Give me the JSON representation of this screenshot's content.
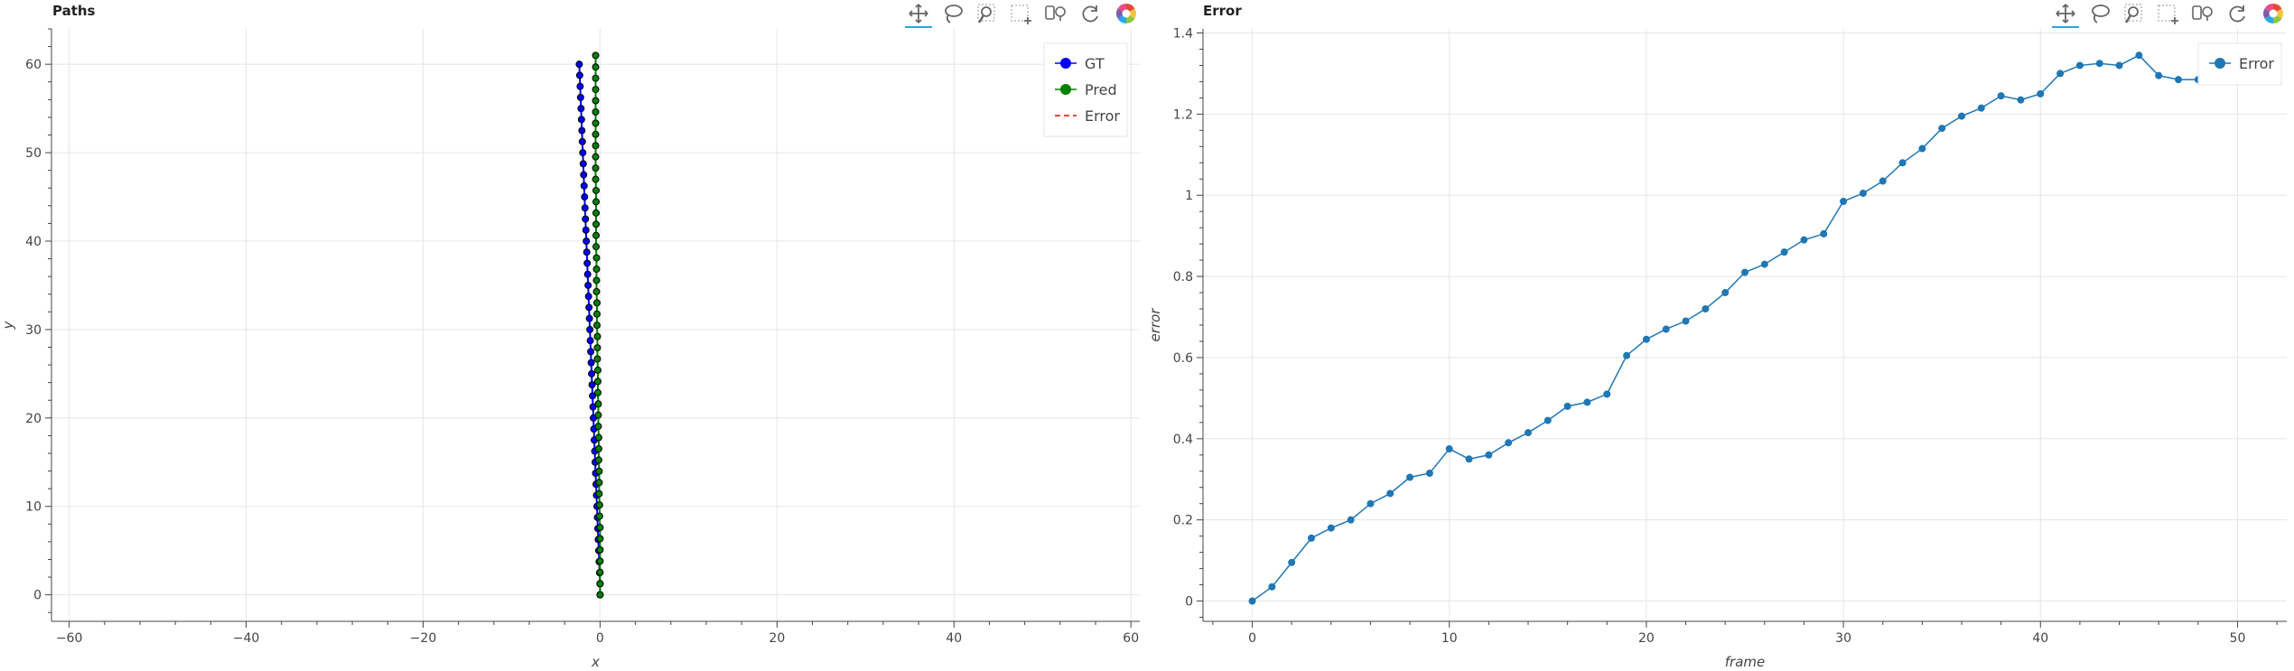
{
  "toolbar": {
    "tools": [
      "pan-icon",
      "lasso-select-icon",
      "wheel-zoom-icon",
      "box-zoom-icon",
      "hover-icon",
      "reset-icon",
      "bokeh-logo-icon"
    ],
    "active_tool": "pan-icon"
  },
  "colors": {
    "gt": "#0000ff",
    "pred": "#008000",
    "error_dash": "#ff0000",
    "error_line": "#1f77b4",
    "grid": "#e5e5e5",
    "axis": "#444444",
    "toolbar_accent": "#26aae1"
  },
  "chart_data": [
    {
      "type": "line",
      "title": "Paths",
      "xlabel": "x",
      "ylabel": "y",
      "xlim": [
        -62,
        61
      ],
      "ylim": [
        -3,
        64
      ],
      "xticks": [
        -60,
        -40,
        -20,
        0,
        20,
        40,
        60
      ],
      "yticks": [
        0,
        10,
        20,
        30,
        40,
        50,
        60
      ],
      "xtick_labels": [
        "−60",
        "−40",
        "−20",
        "0",
        "20",
        "40",
        "60"
      ],
      "ytick_labels": [
        "0",
        "10",
        "20",
        "30",
        "40",
        "50",
        "60"
      ],
      "grid": true,
      "legend_position": "top-right",
      "legend": [
        "GT",
        "Pred",
        "Error"
      ],
      "series": [
        {
          "name": "GT",
          "x": [
            0.0,
            0.0,
            -0.05,
            -0.1,
            -0.15,
            -0.2,
            -0.25,
            -0.3,
            -0.35,
            -0.4,
            -0.45,
            -0.5,
            -0.55,
            -0.6,
            -0.65,
            -0.7,
            -0.75,
            -0.8,
            -0.85,
            -0.9,
            -0.95,
            -1.0,
            -1.05,
            -1.1,
            -1.15,
            -1.2,
            -1.25,
            -1.3,
            -1.35,
            -1.4,
            -1.45,
            -1.5,
            -1.55,
            -1.6,
            -1.65,
            -1.7,
            -1.75,
            -1.8,
            -1.85,
            -1.9,
            -1.95,
            -2.0,
            -2.05,
            -2.1,
            -2.15,
            -2.2,
            -2.25,
            -2.3,
            -2.35
          ],
          "y": [
            0,
            1.25,
            2.5,
            3.75,
            5,
            6.25,
            7.5,
            8.75,
            10,
            11.25,
            12.5,
            13.75,
            15,
            16.25,
            17.5,
            18.75,
            20,
            21.25,
            22.5,
            23.75,
            25,
            26.25,
            27.5,
            28.75,
            30,
            31.25,
            32.5,
            33.75,
            35,
            36.25,
            37.5,
            38.75,
            40,
            41.25,
            42.5,
            43.75,
            45,
            46.25,
            47.5,
            48.75,
            50,
            51.25,
            52.5,
            53.75,
            55,
            56.25,
            57.5,
            58.75,
            60
          ]
        },
        {
          "name": "Pred",
          "x": [
            0.0,
            0.0,
            0.0,
            0.0,
            0.0,
            0.0,
            0.0,
            -0.05,
            -0.05,
            -0.1,
            -0.1,
            -0.1,
            -0.15,
            -0.15,
            -0.15,
            -0.2,
            -0.2,
            -0.2,
            -0.25,
            -0.25,
            -0.25,
            -0.3,
            -0.3,
            -0.3,
            -0.35,
            -0.35,
            -0.35,
            -0.4,
            -0.4,
            -0.4,
            -0.4,
            -0.45,
            -0.45,
            -0.45,
            -0.45,
            -0.45,
            -0.45,
            -0.5,
            -0.5,
            -0.5,
            -0.5,
            -0.5,
            -0.5,
            -0.5,
            -0.5,
            -0.5,
            -0.5,
            -0.5,
            -0.5
          ],
          "y": [
            0,
            1.27,
            2.54,
            3.81,
            5.08,
            6.35,
            7.62,
            8.89,
            10.16,
            11.43,
            12.7,
            13.97,
            15.24,
            16.51,
            17.78,
            19.05,
            20.32,
            21.59,
            22.86,
            24.13,
            25.4,
            26.67,
            27.94,
            29.21,
            30.48,
            31.75,
            33.02,
            34.29,
            35.56,
            36.83,
            38.1,
            39.37,
            40.64,
            41.91,
            43.18,
            44.45,
            45.72,
            46.99,
            48.26,
            49.53,
            50.8,
            52.07,
            53.34,
            54.61,
            55.88,
            57.15,
            58.42,
            59.69,
            61.0
          ]
        }
      ]
    },
    {
      "type": "line",
      "title": "Error",
      "xlabel": "frame",
      "ylabel": "error",
      "xlim": [
        -2.5,
        52.5
      ],
      "ylim": [
        -0.05,
        1.41
      ],
      "xticks": [
        0,
        10,
        20,
        30,
        40,
        50
      ],
      "yticks": [
        0,
        0.2,
        0.4,
        0.6,
        0.8,
        1.0,
        1.2,
        1.4
      ],
      "xtick_labels": [
        "0",
        "10",
        "20",
        "30",
        "40",
        "50"
      ],
      "ytick_labels": [
        "0",
        "0.2",
        "0.4",
        "0.6",
        "0.8",
        "1",
        "1.2",
        "1.4"
      ],
      "grid": true,
      "legend_position": "top-right",
      "legend": [
        "Error"
      ],
      "series": [
        {
          "name": "Error",
          "x": [
            0,
            1,
            2,
            3,
            4,
            5,
            6,
            7,
            8,
            9,
            10,
            11,
            12,
            13,
            14,
            15,
            16,
            17,
            18,
            19,
            20,
            21,
            22,
            23,
            24,
            25,
            26,
            27,
            28,
            29,
            30,
            31,
            32,
            33,
            34,
            35,
            36,
            37,
            38,
            39,
            40,
            41,
            42,
            43,
            44,
            45,
            46,
            47,
            48
          ],
          "y": [
            0.0,
            0.035,
            0.095,
            0.155,
            0.18,
            0.2,
            0.24,
            0.265,
            0.305,
            0.315,
            0.375,
            0.35,
            0.36,
            0.39,
            0.415,
            0.445,
            0.48,
            0.49,
            0.51,
            0.605,
            0.645,
            0.67,
            0.69,
            0.72,
            0.76,
            0.81,
            0.83,
            0.86,
            0.89,
            0.905,
            0.985,
            1.005,
            1.035,
            1.08,
            1.115,
            1.165,
            1.195,
            1.215,
            1.245,
            1.235,
            1.25,
            1.3,
            1.32,
            1.325,
            1.32,
            1.345,
            1.295,
            1.285,
            1.285
          ]
        }
      ]
    }
  ]
}
